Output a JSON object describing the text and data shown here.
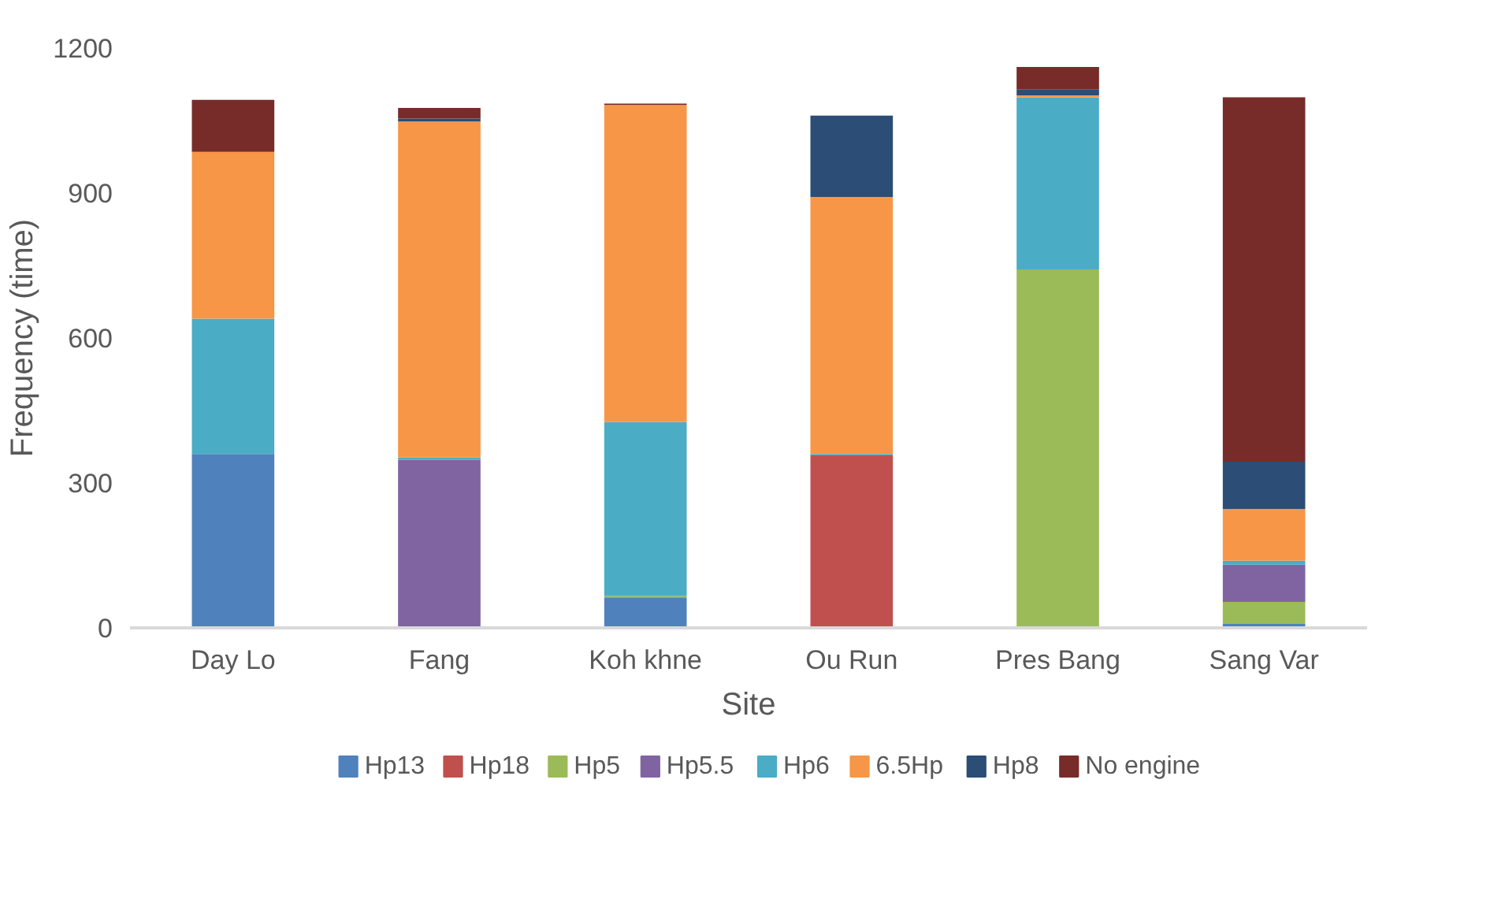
{
  "chart_data": {
    "type": "bar",
    "stacked": true,
    "xlabel": "Site",
    "ylabel": "Frequency (time)",
    "categories": [
      "Day Lo",
      "Fang",
      "Koh khne",
      "Ou Run",
      "Pres Bang",
      "Sang Var"
    ],
    "series": [
      {
        "name": "Hp13",
        "color": "#4f81bd",
        "values": [
          360,
          null,
          63,
          null,
          null,
          8
        ]
      },
      {
        "name": "Hp18",
        "color": "#c0504d",
        "values": [
          null,
          null,
          null,
          357,
          null,
          null
        ]
      },
      {
        "name": "Hp5",
        "color": "#9bbb59",
        "values": [
          null,
          null,
          3,
          null,
          742,
          46
        ]
      },
      {
        "name": "Hp5.5",
        "color": "#8064a2",
        "values": [
          null,
          348,
          null,
          null,
          null,
          77
        ]
      },
      {
        "name": "Hp6",
        "color": "#4bacc6",
        "values": [
          280,
          5,
          360,
          3,
          356,
          8
        ]
      },
      {
        "name": "6.5Hp",
        "color": "#f79646",
        "values": [
          345,
          695,
          656,
          532,
          4,
          107
        ]
      },
      {
        "name": "Hp8",
        "color": "#2c4d75",
        "values": [
          null,
          6,
          null,
          168,
          12,
          98
        ]
      },
      {
        "name": "No engine",
        "color": "#772c2a",
        "values": [
          108,
          22,
          3,
          null,
          47,
          754
        ]
      }
    ],
    "ylim": [
      0,
      1200
    ],
    "yticks": [
      0,
      300,
      600,
      900,
      1200
    ],
    "grid": false,
    "legend": "bottom"
  }
}
